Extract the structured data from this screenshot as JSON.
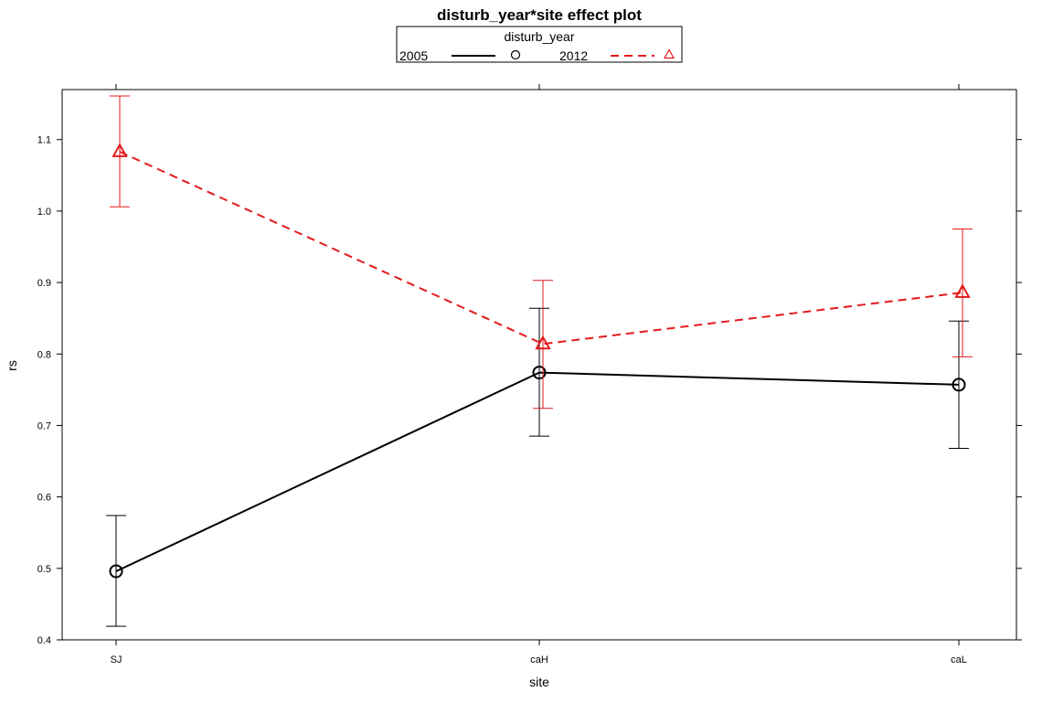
{
  "chart_data": {
    "type": "line",
    "title": "disturb_year*site effect plot",
    "xlabel": "site",
    "ylabel": "rs",
    "categories": [
      "SJ",
      "caH",
      "caL"
    ],
    "ylim": [
      0.4,
      1.17
    ],
    "yticks": [
      0.4,
      0.5,
      0.6,
      0.7,
      0.8,
      0.9,
      1.0,
      1.1
    ],
    "ytick_labels": [
      "0.4",
      "0.5",
      "0.6",
      "0.7",
      "0.8",
      "0.9",
      "1.0",
      "1.1"
    ],
    "legend": {
      "title": "disturb_year",
      "placement": "top-center"
    },
    "grid": false,
    "series": [
      {
        "name": "2005",
        "color": "#000000",
        "line_style": "solid",
        "marker": "circle",
        "values": [
          0.496,
          0.774,
          0.757
        ],
        "lower": [
          0.419,
          0.685,
          0.668
        ],
        "upper": [
          0.574,
          0.864,
          0.846
        ]
      },
      {
        "name": "2012",
        "color": "#e41a1c",
        "line_style": "dashed",
        "marker": "triangle",
        "values": [
          1.083,
          0.814,
          0.886
        ],
        "lower": [
          1.006,
          0.724,
          0.796
        ],
        "upper": [
          1.161,
          0.903,
          0.975
        ]
      }
    ]
  }
}
